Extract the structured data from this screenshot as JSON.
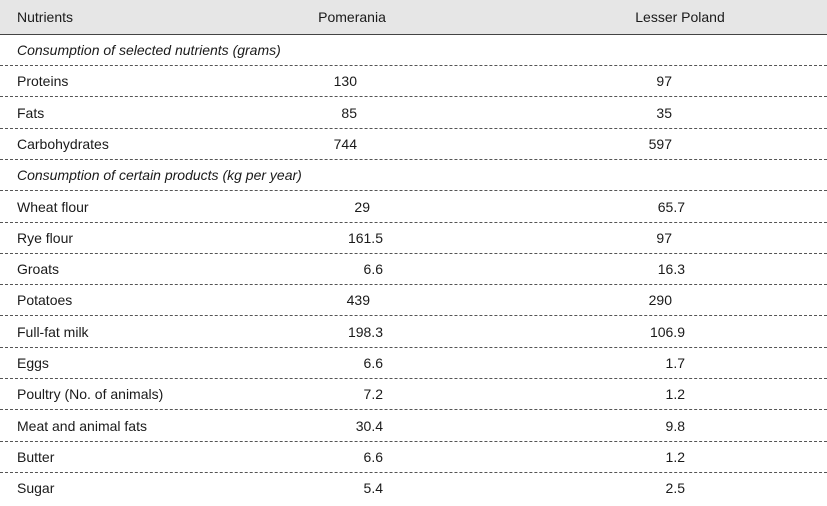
{
  "table": {
    "header": [
      "Nutrients",
      "Pomerania",
      "Lesser Poland"
    ],
    "sections": [
      {
        "title": "Consumption of selected nutrients (grams)",
        "rows": [
          [
            "Proteins",
            "130",
            "97"
          ],
          [
            "Fats",
            "85",
            "35"
          ],
          [
            "Carbohydrates",
            "744",
            "597"
          ]
        ]
      },
      {
        "title": "Consumption of certain products (kg per year)",
        "rows": [
          [
            "Wheat flour",
            "29",
            "65.7"
          ],
          [
            "Rye flour",
            "161.5",
            "97"
          ],
          [
            "Groats",
            "6.6",
            "16.3"
          ],
          [
            "Potatoes",
            "439",
            "290"
          ],
          [
            "Full-fat milk",
            "198.3",
            "106.9"
          ],
          [
            "Eggs",
            "6.6",
            "1.7"
          ],
          [
            "Poultry (No. of animals)",
            "7.2",
            "1.2"
          ],
          [
            "Meat and animal fats",
            "30.4",
            "9.8"
          ],
          [
            "Butter",
            "6.6",
            "1.2"
          ],
          [
            "Sugar",
            "5.4",
            "2.5"
          ]
        ]
      }
    ]
  }
}
